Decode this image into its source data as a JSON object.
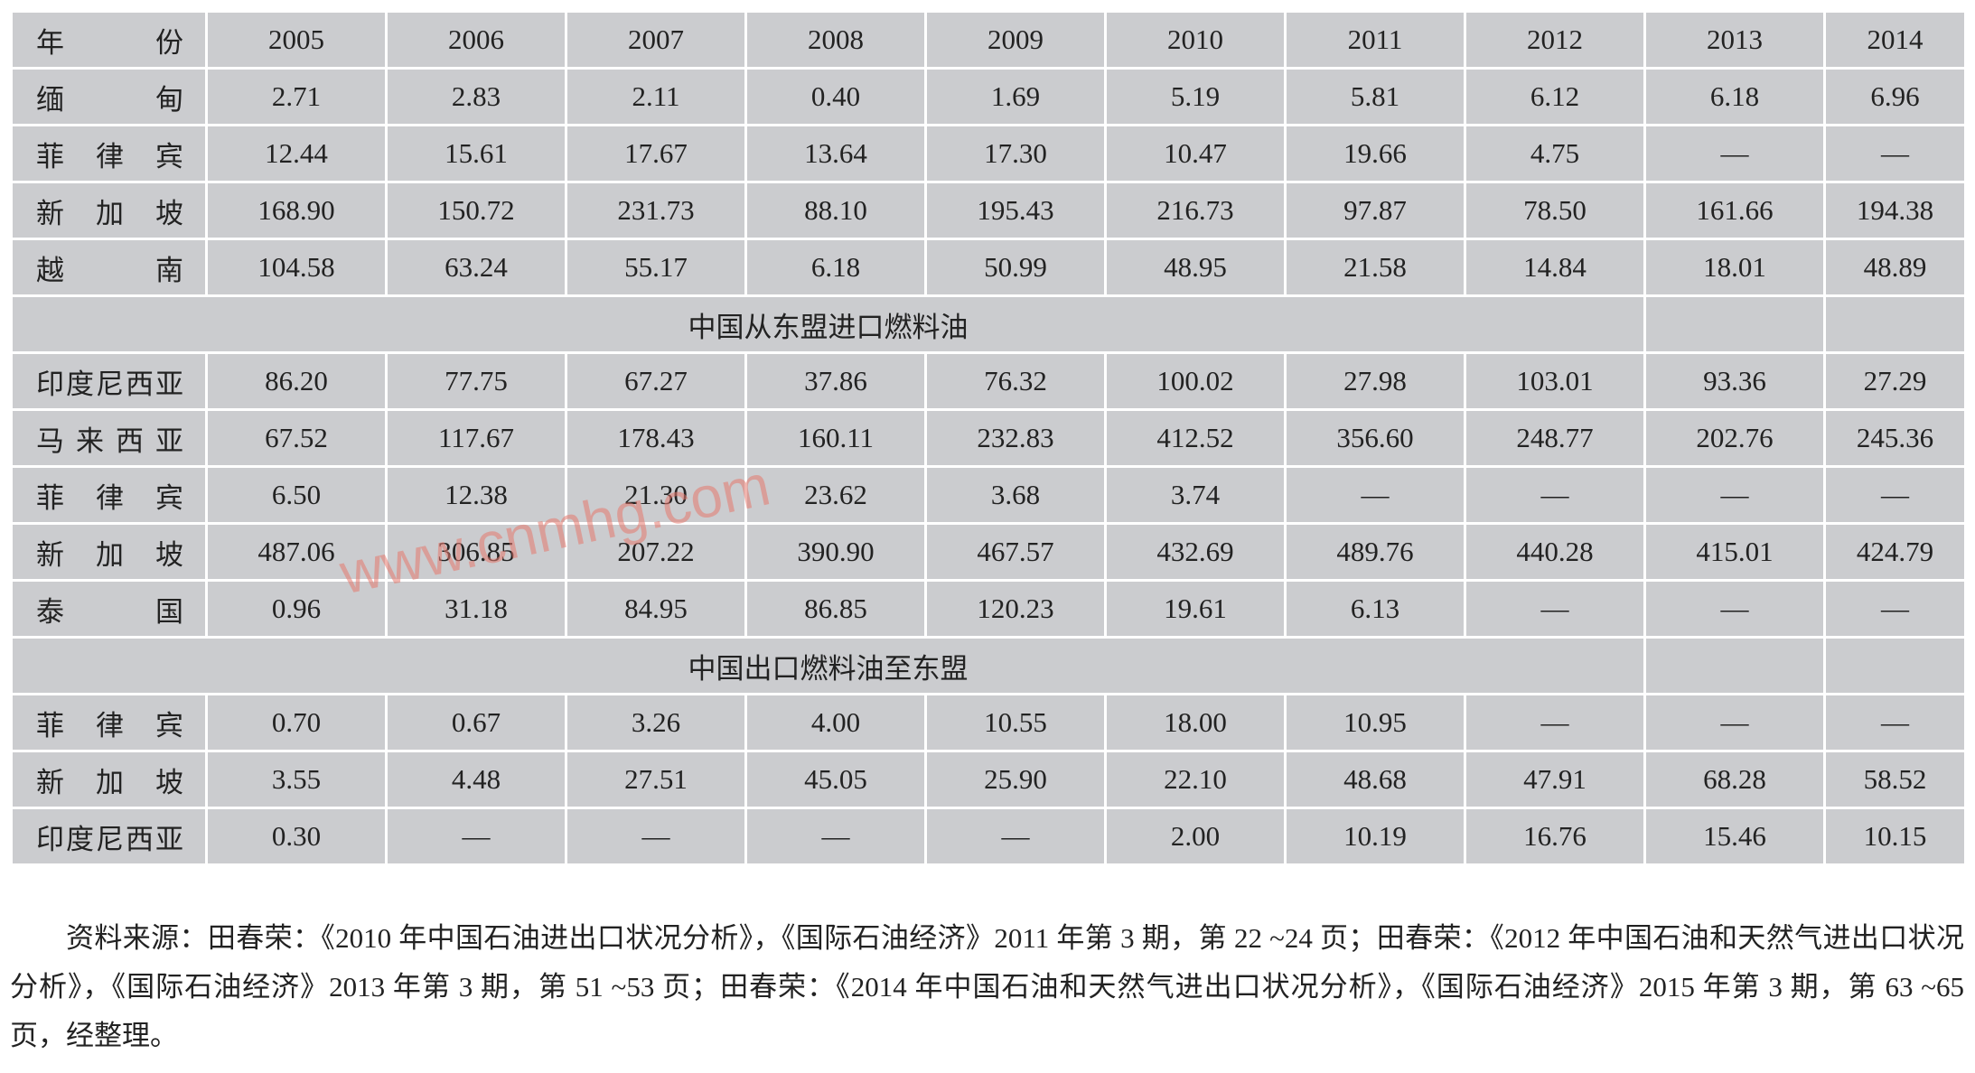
{
  "table": {
    "header": [
      "年份",
      "2005",
      "2006",
      "2007",
      "2008",
      "2009",
      "2010",
      "2011",
      "2012",
      "2013",
      "2014"
    ],
    "rows": [
      [
        "缅甸",
        "2.71",
        "2.83",
        "2.11",
        "0.40",
        "1.69",
        "5.19",
        "5.81",
        "6.12",
        "6.18",
        "6.96"
      ],
      [
        "菲律宾",
        "12.44",
        "15.61",
        "17.67",
        "13.64",
        "17.30",
        "10.47",
        "19.66",
        "4.75",
        "—",
        "—"
      ],
      [
        "新加坡",
        "168.90",
        "150.72",
        "231.73",
        "88.10",
        "195.43",
        "216.73",
        "97.87",
        "78.50",
        "161.66",
        "194.38"
      ],
      [
        "越南",
        "104.58",
        "63.24",
        "55.17",
        "6.18",
        "50.99",
        "48.95",
        "21.58",
        "14.84",
        "18.01",
        "48.89"
      ],
      {
        "section": "中国从东盟进口燃料油"
      },
      [
        "印度尼西亚",
        "86.20",
        "77.75",
        "67.27",
        "37.86",
        "76.32",
        "100.02",
        "27.98",
        "103.01",
        "93.36",
        "27.29"
      ],
      [
        "马来西亚",
        "67.52",
        "117.67",
        "178.43",
        "160.11",
        "232.83",
        "412.52",
        "356.60",
        "248.77",
        "202.76",
        "245.36"
      ],
      [
        "菲律宾",
        "6.50",
        "12.38",
        "21.30",
        "23.62",
        "3.68",
        "3.74",
        "—",
        "—",
        "—",
        "—"
      ],
      [
        "新加坡",
        "487.06",
        "306.85",
        "207.22",
        "390.90",
        "467.57",
        "432.69",
        "489.76",
        "440.28",
        "415.01",
        "424.79"
      ],
      [
        "泰国",
        "0.96",
        "31.18",
        "84.95",
        "86.85",
        "120.23",
        "19.61",
        "6.13",
        "—",
        "—",
        "—"
      ],
      {
        "section": "中国出口燃料油至东盟"
      },
      [
        "菲律宾",
        "0.70",
        "0.67",
        "3.26",
        "4.00",
        "10.55",
        "18.00",
        "10.95",
        "—",
        "—",
        "—"
      ],
      [
        "新加坡",
        "3.55",
        "4.48",
        "27.51",
        "45.05",
        "25.90",
        "22.10",
        "48.68",
        "47.91",
        "68.28",
        "58.52"
      ],
      [
        "印度尼西亚",
        "0.30",
        "—",
        "—",
        "—",
        "—",
        "2.00",
        "10.19",
        "16.76",
        "15.46",
        "10.15"
      ]
    ]
  },
  "watermark": "www.cnmhg.com",
  "source": "资料来源：田春荣：《2010 年中国石油进出口状况分析》，《国际石油经济》2011 年第 3 期，第 22 ~24 页；田春荣：《2012 年中国石油和天然气进出口状况分析》，《国际石油经济》2013 年第 3 期，第 51 ~53 页；田春荣：《2014 年中国石油和天然气进出口状况分析》，《国际石油经济》2015 年第 3 期，第 63 ~65 页，经整理。"
}
